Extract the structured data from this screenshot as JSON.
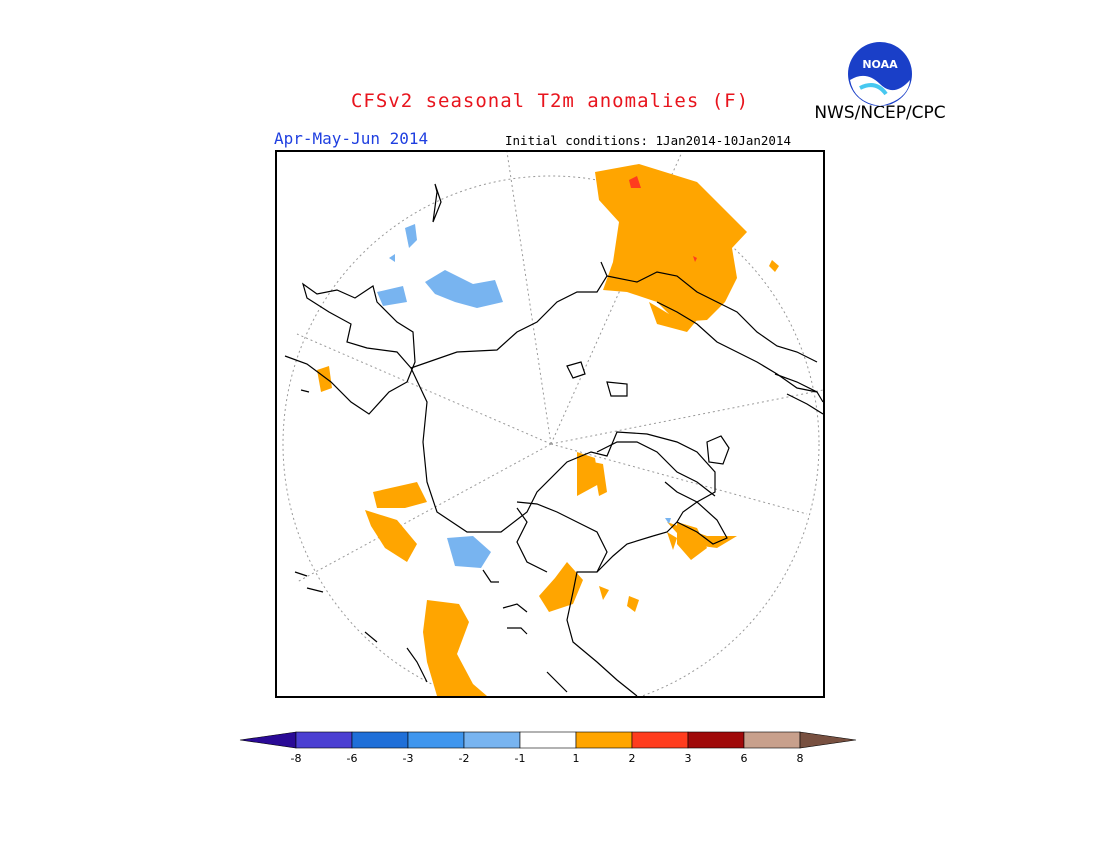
{
  "title": "CFSv2 seasonal T2m anomalies (F)",
  "credit": "NWS/NCEP/CPC",
  "logo_text": "NOAA",
  "period": "Apr-May-Jun 2014",
  "initial_conditions": "Initial conditions: 1Jan2014-10Jan2014",
  "colors": {
    "title": "#e8141d",
    "period": "#1f3fe0",
    "warm_anomaly": "#ffa500",
    "cool_anomaly": "#78b4f0",
    "strong_warm": "#ff3c1e"
  },
  "colorbar": {
    "colors": [
      "#2a0a96",
      "#4b3fd2",
      "#1f6fd8",
      "#3f96ee",
      "#78b4f0",
      "#ffffff",
      "#ffa500",
      "#ff3c1e",
      "#a00a0a",
      "#c8a08c",
      "#785040"
    ],
    "tick_labels": [
      "-8",
      "-6",
      "-3",
      "-2",
      "-1",
      "1",
      "2",
      "3",
      "6",
      "8"
    ]
  }
}
